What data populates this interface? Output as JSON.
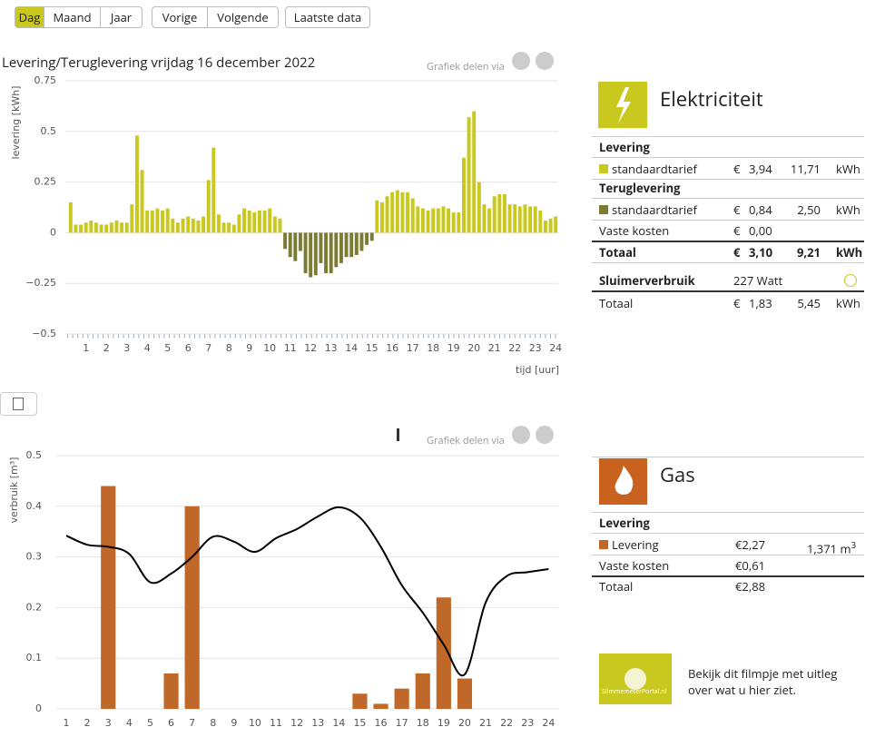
{
  "nav": {
    "buttons": [
      "Dag",
      "Maand",
      "Jaar",
      "Vorige",
      "Volgende",
      "Laatste data"
    ]
  },
  "share": "Grafiek delen via",
  "chart_data": [
    {
      "type": "bar",
      "title": "Levering/Teruglevering vrijdag 16 december 2022",
      "ylabel": "levering [kWh]",
      "xlabel": "tijd [uur]",
      "categories": [
        null,
        null,
        null,
        "1",
        null,
        null,
        null,
        "2",
        null,
        null,
        null,
        "3",
        null,
        null,
        null,
        "4",
        null,
        null,
        null,
        "5",
        null,
        null,
        null,
        "6",
        null,
        null,
        null,
        "7",
        null,
        null,
        null,
        "8",
        null,
        null,
        null,
        "9",
        null,
        null,
        null,
        "10",
        null,
        null,
        null,
        "11",
        null,
        null,
        null,
        "12",
        null,
        null,
        null,
        "13",
        null,
        null,
        null,
        "14",
        null,
        null,
        null,
        "15",
        null,
        null,
        null,
        "16",
        null,
        null,
        null,
        "17",
        null,
        null,
        null,
        "18",
        null,
        null,
        null,
        "19",
        null,
        null,
        null,
        "20",
        null,
        null,
        null,
        "21",
        null,
        null,
        null,
        "22",
        null,
        null,
        null,
        "23",
        null,
        null,
        null,
        "24"
      ],
      "values": [
        0.15,
        0.04,
        0.04,
        0.05,
        0.06,
        0.05,
        0.04,
        0.04,
        0.05,
        0.06,
        0.05,
        0.05,
        0.14,
        0.48,
        0.31,
        0.11,
        0.11,
        0.12,
        0.11,
        0.12,
        0.07,
        0.05,
        0.07,
        0.08,
        0.07,
        0.06,
        0.08,
        0.26,
        0.42,
        0.09,
        0.05,
        0.05,
        0.04,
        0.09,
        0.12,
        0.11,
        0.1,
        0.11,
        0.11,
        0.12,
        0.08,
        0.07,
        -0.08,
        -0.12,
        -0.14,
        -0.09,
        -0.2,
        -0.22,
        -0.21,
        -0.15,
        -0.2,
        -0.2,
        -0.17,
        -0.15,
        -0.12,
        -0.12,
        -0.11,
        -0.09,
        -0.06,
        -0.04,
        0.16,
        0.15,
        0.18,
        0.2,
        0.21,
        0.2,
        0.2,
        0.17,
        0.13,
        0.12,
        0.11,
        0.12,
        0.12,
        0.13,
        0.12,
        0.1,
        0.1,
        0.37,
        0.57,
        0.6,
        0.25,
        0.14,
        0.12,
        0.18,
        0.19,
        0.19,
        0.14,
        0.14,
        0.13,
        0.14,
        0.13,
        0.13,
        0.11,
        0.06,
        0.07,
        0.08
      ],
      "color": "#c8c81e",
      "negative_color": "#7b7b34",
      "ylim": [
        -0.5,
        0.75
      ],
      "yticks": [
        0.75,
        0.5,
        0.25,
        0,
        {
          "value": -0.25,
          "label": "−0.25"
        },
        {
          "value": -0.5,
          "label": "−0.5"
        }
      ],
      "grid": true
    },
    {
      "type": "bar",
      "ylabel": "verbruik [m³]",
      "categories": [
        "1",
        "2",
        "3",
        "4",
        "5",
        "6",
        "7",
        "8",
        "9",
        "10",
        "11",
        "12",
        "13",
        "14",
        "15",
        "16",
        "17",
        "18",
        "19",
        "20",
        "21",
        "22",
        "23",
        "24"
      ],
      "values": [
        0,
        0,
        0.44,
        0,
        0,
        0.07,
        0.4,
        0,
        0,
        0,
        0,
        0,
        0,
        0,
        0.03,
        0.01,
        0.04,
        0.07,
        0.22,
        0.06,
        0,
        0,
        0,
        0
      ],
      "color": "#c0672a",
      "line": {
        "values": [
          0.342,
          0.324,
          0.32,
          0.306,
          0.25,
          0.267,
          0.3,
          0.34,
          0.33,
          0.31,
          0.337,
          0.355,
          0.38,
          0.398,
          0.378,
          0.32,
          0.244,
          0.19,
          0.127,
          0.068,
          0.21,
          0.262,
          0.27,
          0.276
        ],
        "color": "#000000"
      },
      "ylim": [
        0,
        0.5
      ],
      "yticks": [
        0,
        0.1,
        0.2,
        0.3,
        0.4,
        0.5
      ],
      "grid": true
    }
  ],
  "electricity_panel": {
    "title": "Elektriciteit",
    "levering": "Levering",
    "teruglevering": "Teruglevering",
    "rows": [
      {
        "label": "standaardtarief",
        "cur": "€",
        "amount": "3,94",
        "qty": "11,71",
        "unit": "kWh"
      },
      {
        "label": "standaardtarief",
        "cur": "€",
        "amount": "0,84",
        "qty": "2,50",
        "unit": "kWh"
      },
      {
        "label": "Vaste kosten",
        "cur": "€",
        "amount": "0,00"
      },
      {
        "label": "Totaal",
        "cur": "€",
        "amount": "3,10",
        "qty": "9,21",
        "unit": "kWh"
      }
    ],
    "sluimer": {
      "label": "Sluimerverbruik",
      "value": "227 Watt"
    },
    "sluimer_total": {
      "label": "Totaal",
      "cur": "€",
      "amount": "1,83",
      "qty": "5,45",
      "unit": "kWh"
    }
  },
  "gas_panel": {
    "title": "Gas",
    "levering": "Levering",
    "rows": [
      {
        "label": "Levering",
        "amount": "€2,27",
        "qty": "1,371 m",
        "sup": "3"
      },
      {
        "label": "Vaste kosten",
        "amount": "€0,61"
      },
      {
        "label": "Totaal",
        "amount": "€2,88"
      }
    ]
  },
  "video": {
    "brand": "SlimmemeterPortal.nl",
    "text": "Bekijk dit filmpje met uitleg over wat u hier ziet."
  }
}
